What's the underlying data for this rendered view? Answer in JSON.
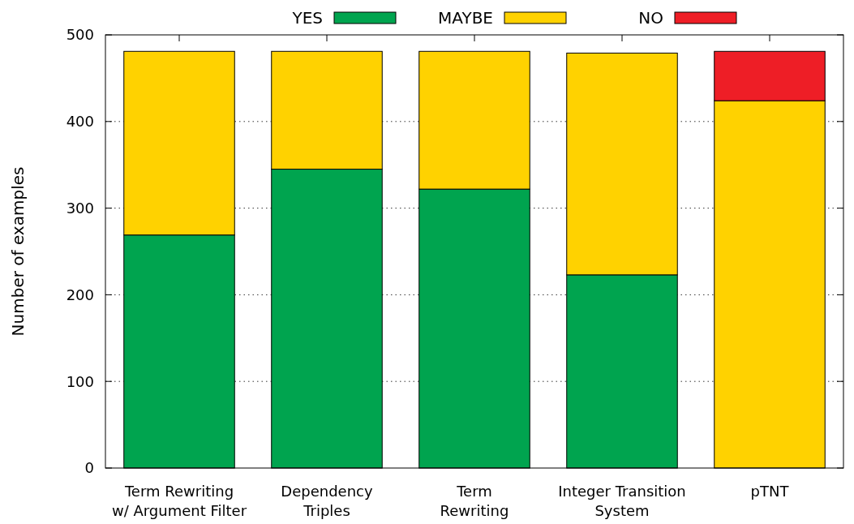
{
  "chart_data": {
    "type": "bar",
    "stacked": true,
    "ylabel": "Number of examples",
    "categories": [
      "Term Rewriting\nw/ Argument Filter",
      "Dependency\nTriples",
      "Term\nRewriting",
      "Integer Transition\nSystem",
      "pTNT"
    ],
    "series": [
      {
        "name": "YES",
        "color": "#00a44f",
        "values": [
          269,
          345,
          322,
          223,
          0
        ]
      },
      {
        "name": "MAYBE",
        "color": "#ffd200",
        "values": [
          212,
          136,
          159,
          256,
          424
        ]
      },
      {
        "name": "NO",
        "color": "#ee1e26",
        "values": [
          0,
          0,
          0,
          0,
          57
        ]
      }
    ],
    "ylim": [
      0,
      500
    ],
    "yticks": [
      0,
      100,
      200,
      300,
      400,
      500
    ],
    "grid": "y",
    "legend": "top"
  }
}
